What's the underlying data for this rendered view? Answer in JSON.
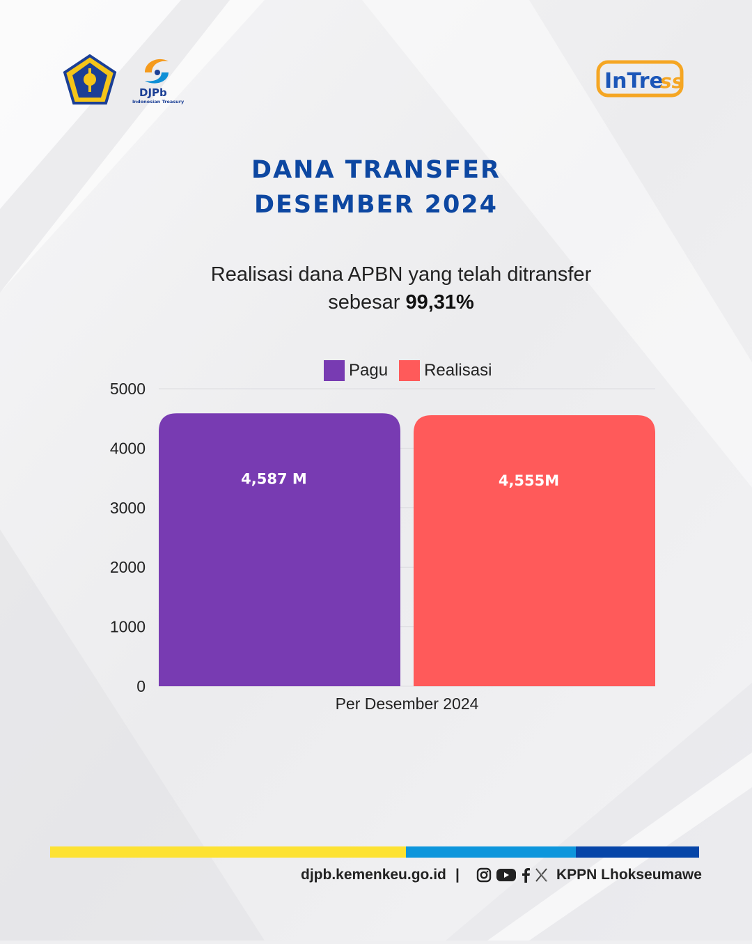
{
  "header": {
    "djpb_logo_text": "DJPb",
    "djpb_logo_subtext": "Indonesian Treasury",
    "intress_logo_text": "InTress"
  },
  "title": {
    "line1": "DANA TRANSFER",
    "line2": "DESEMBER 2024"
  },
  "subtitle": {
    "line1": "Realisasi dana APBN yang telah ditransfer",
    "line2_prefix": "sebesar ",
    "line2_value": "99,31%"
  },
  "colors": {
    "title": "#0d47a1",
    "pagu": "#783bb2",
    "realisasi": "#ff5a5a",
    "footer_yellow": "#fde232",
    "footer_lightblue": "#0d96dc",
    "footer_darkblue": "#0645a8"
  },
  "chart_data": {
    "type": "bar",
    "categories": [
      "Per Desember 2024"
    ],
    "series": [
      {
        "name": "Pagu",
        "values": [
          4587
        ],
        "data_label": "4,587 M",
        "color": "#783bb2"
      },
      {
        "name": "Realisasi",
        "values": [
          4555
        ],
        "data_label": "4,555M",
        "color": "#ff5a5a"
      }
    ],
    "ylim": [
      0,
      5000
    ],
    "yticks": [
      "0",
      "1000",
      "2000",
      "3000",
      "4000",
      "5000"
    ],
    "grid": true,
    "legend": "top"
  },
  "footer": {
    "website": "djpb.kemenkeu.go.id",
    "separator": "|",
    "social_icons": [
      "instagram-icon",
      "youtube-icon",
      "facebook-icon",
      "x-icon"
    ],
    "org": "KPPN Lhokseumawe"
  }
}
